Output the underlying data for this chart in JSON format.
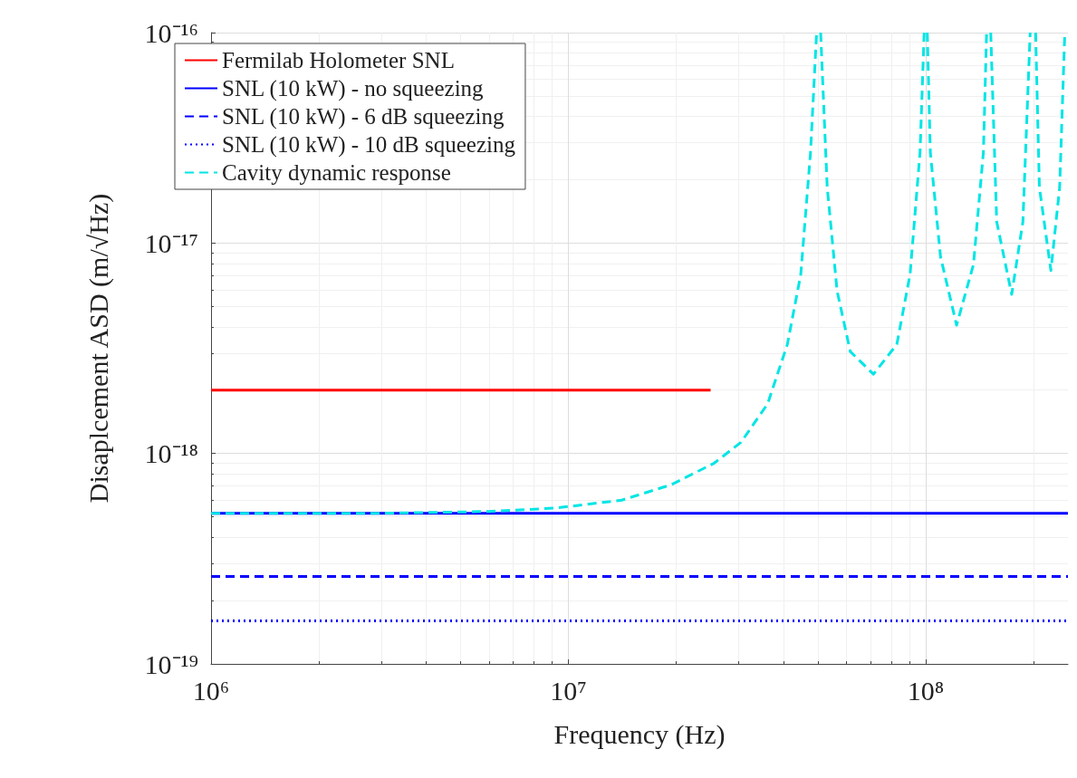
{
  "chart_data": {
    "type": "line",
    "xlabel": "Frequency (Hz)",
    "ylabel": "Disaplcement ASD (m/√Hz)",
    "log": "xy",
    "grid": true,
    "legend": "top left",
    "marker": "none",
    "xlim": [
      1000000,
      250000000
    ],
    "xticks": [
      {
        "value": 1000000,
        "label": "10⁶"
      },
      {
        "value": 10000000,
        "label": "10⁷"
      },
      {
        "value": 100000000,
        "label": "10⁸"
      }
    ],
    "ylim": [
      1e-19,
      1e-16
    ],
    "yticks": [
      {
        "value": 1e-19,
        "label": "10⁻¹⁹"
      },
      {
        "value": 1e-18,
        "label": "10⁻¹⁸"
      },
      {
        "value": 1e-17,
        "label": "10⁻¹⁷"
      },
      {
        "value": 1e-16,
        "label": "10⁻¹⁶"
      }
    ],
    "series": [
      {
        "name": "Fermilab Holometer SNL",
        "color": "#ff0000",
        "line_style": "solid",
        "x": [
          1000000,
          25000000
        ],
        "values": [
          2e-18,
          2e-18
        ]
      },
      {
        "name": "SNL (10 kW) - no squeezing",
        "color": "#0000ff",
        "line_style": "solid",
        "x": [
          1000000,
          250000000
        ],
        "values": [
          5.2e-19,
          5.2e-19
        ]
      },
      {
        "name": "SNL (10 kW) - 6 dB squeezing",
        "color": "#0000ff",
        "line_style": "dashed",
        "x": [
          1000000,
          250000000
        ],
        "values": [
          2.6e-19,
          2.6e-19
        ]
      },
      {
        "name": "SNL (10 kW) - 10 dB squeezing",
        "color": "#0000ff",
        "line_style": "dotted",
        "x": [
          1000000,
          250000000
        ],
        "values": [
          1.6e-19,
          1.6e-19
        ]
      },
      {
        "name": "Cavity dynamic response",
        "color": "#00e5e5",
        "line_style": "dashed",
        "x": [
          1000000,
          3000000,
          6000000,
          9200000,
          14100000,
          19400000,
          25600000,
          30400000,
          36100000,
          41000000,
          44700000,
          47600000,
          49500000,
          50000000,
          50800000,
          53000000,
          56500000,
          61500000,
          71400000,
          83000000,
          90400000,
          96400000,
          99000000,
          100000000,
          101000000,
          103000000,
          110000000,
          122000000,
          136000000,
          145000000,
          148000000,
          150000000,
          152000000,
          158000000,
          174000000,
          187000000,
          196000000,
          200000000,
          203000000,
          208000000,
          224000000,
          237000000,
          245000000
        ],
        "values": [
          5.2e-19,
          5.2e-19,
          5.3e-19,
          5.5e-19,
          6e-19,
          7.1e-19,
          9e-19,
          1.13e-18,
          1.72e-18,
          3.3e-18,
          7.1e-18,
          2.7e-17,
          1e-16,
          null,
          1e-16,
          1.84e-17,
          5.9e-18,
          3.05e-18,
          2.38e-18,
          3.3e-18,
          7.1e-18,
          2.7e-17,
          1e-16,
          null,
          1e-16,
          2.7e-17,
          8.6e-18,
          4.07e-18,
          7.9e-18,
          2.7e-17,
          1e-16,
          null,
          1e-16,
          1.26e-17,
          5.7e-18,
          1.26e-17,
          1e-16,
          null,
          1e-16,
          1.84e-17,
          7.4e-18,
          1.84e-17,
          1e-16
        ]
      }
    ]
  }
}
